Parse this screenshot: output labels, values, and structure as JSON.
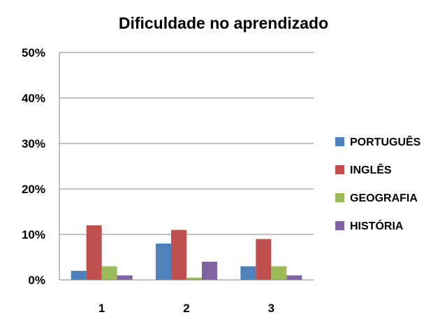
{
  "chart_data": {
    "type": "bar",
    "title": "Dificuldade no aprendizado",
    "xlabel": "",
    "ylabel": "",
    "categories": [
      "1",
      "2",
      "3"
    ],
    "series": [
      {
        "name": "PORTUGUÊS",
        "color": "#4F81BD",
        "values": [
          0.02,
          0.08,
          0.03
        ]
      },
      {
        "name": "INGLÊS",
        "color": "#C0504D",
        "values": [
          0.12,
          0.11,
          0.09
        ]
      },
      {
        "name": "GEOGRAFIA",
        "color": "#9BBB59",
        "values": [
          0.03,
          0.005,
          0.03
        ]
      },
      {
        "name": "HISTÓRIA",
        "color": "#8064A2",
        "values": [
          0.01,
          0.04,
          0.01
        ]
      }
    ],
    "ylim": [
      0,
      0.5
    ],
    "yticks": [
      "0%",
      "10%",
      "20%",
      "30%",
      "40%",
      "50%"
    ],
    "grid": true,
    "legend_position": "right"
  }
}
